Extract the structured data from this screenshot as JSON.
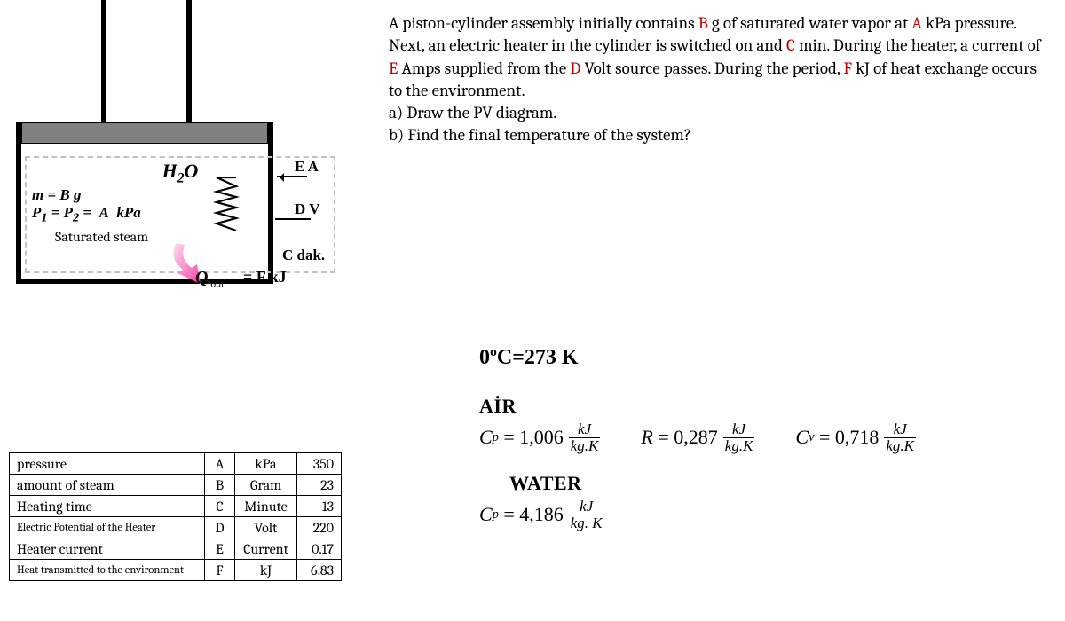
{
  "diagram": {
    "h2o": "H₂O",
    "m_line": "m =  B  g",
    "p_line_html": "P<sub>1</sub> = P<sub>2</sub> =  A  kPa",
    "saturated": "Saturated steam",
    "ea": "E A",
    "dv": "D V",
    "cdak": "C dak.",
    "q_label_html": "<span class='Q'>Q</span><sub> out</sub>",
    "fkj": "=  F  kJ",
    "coil_color": "#000000",
    "arrow_pink": "#f542a7"
  },
  "problem": {
    "text_html": "A piston-cylinder assembly initially contains <span class='sym'>B</span> g of saturated water vapor at <span class='sym'>A</span> kPa pressure. Next, an electric heater in the cylinder is switched on and <span class='sym'>C</span> min. During the heater, a current of <span class='sym'>E</span> Amps supplied from the <span class='sym'>D</span> Volt source passes. During the period, <span class='sym'>F</span> kJ of heat exchange occurs to the environment.<br>a) Draw the PV diagram.<br>b) Find the final temperature of the system?",
    "symbol_color": "#c00000"
  },
  "table": {
    "rows": [
      {
        "desc": "pressure",
        "letter": "A",
        "unit": "kPa",
        "value": "350",
        "small": false
      },
      {
        "desc": "amount of steam",
        "letter": "B",
        "unit": "Gram",
        "value": "23",
        "small": false
      },
      {
        "desc": "Heating time",
        "letter": "C",
        "unit": "Minute",
        "value": "13",
        "small": false
      },
      {
        "desc": "Electric Potential of the Heater",
        "letter": "D",
        "unit": "Volt",
        "value": "220",
        "small": true
      },
      {
        "desc": "Heater current",
        "letter": "E",
        "unit": "Current",
        "value": "0.17",
        "small": false
      },
      {
        "desc": "Heat transmitted to the environment",
        "letter": "F",
        "unit": "kJ",
        "value": "6.83",
        "small": true
      }
    ]
  },
  "constants": {
    "zero_c": "0ºC=273 K",
    "air_header": "AİR",
    "water_header": "WATER",
    "air": {
      "cp_value": "1,006",
      "r_value": "0,287",
      "cv_value": "0,718",
      "cp_unit_num": "kJ",
      "cp_unit_den": "kg.K",
      "r_unit_num": "kJ",
      "r_unit_den": "kg.K",
      "cv_unit_num": "kJ",
      "cv_unit_den": "kg.K"
    },
    "water": {
      "cp_value": "4,186",
      "cp_unit_num": "kJ",
      "cp_unit_den": "kg. K"
    }
  }
}
